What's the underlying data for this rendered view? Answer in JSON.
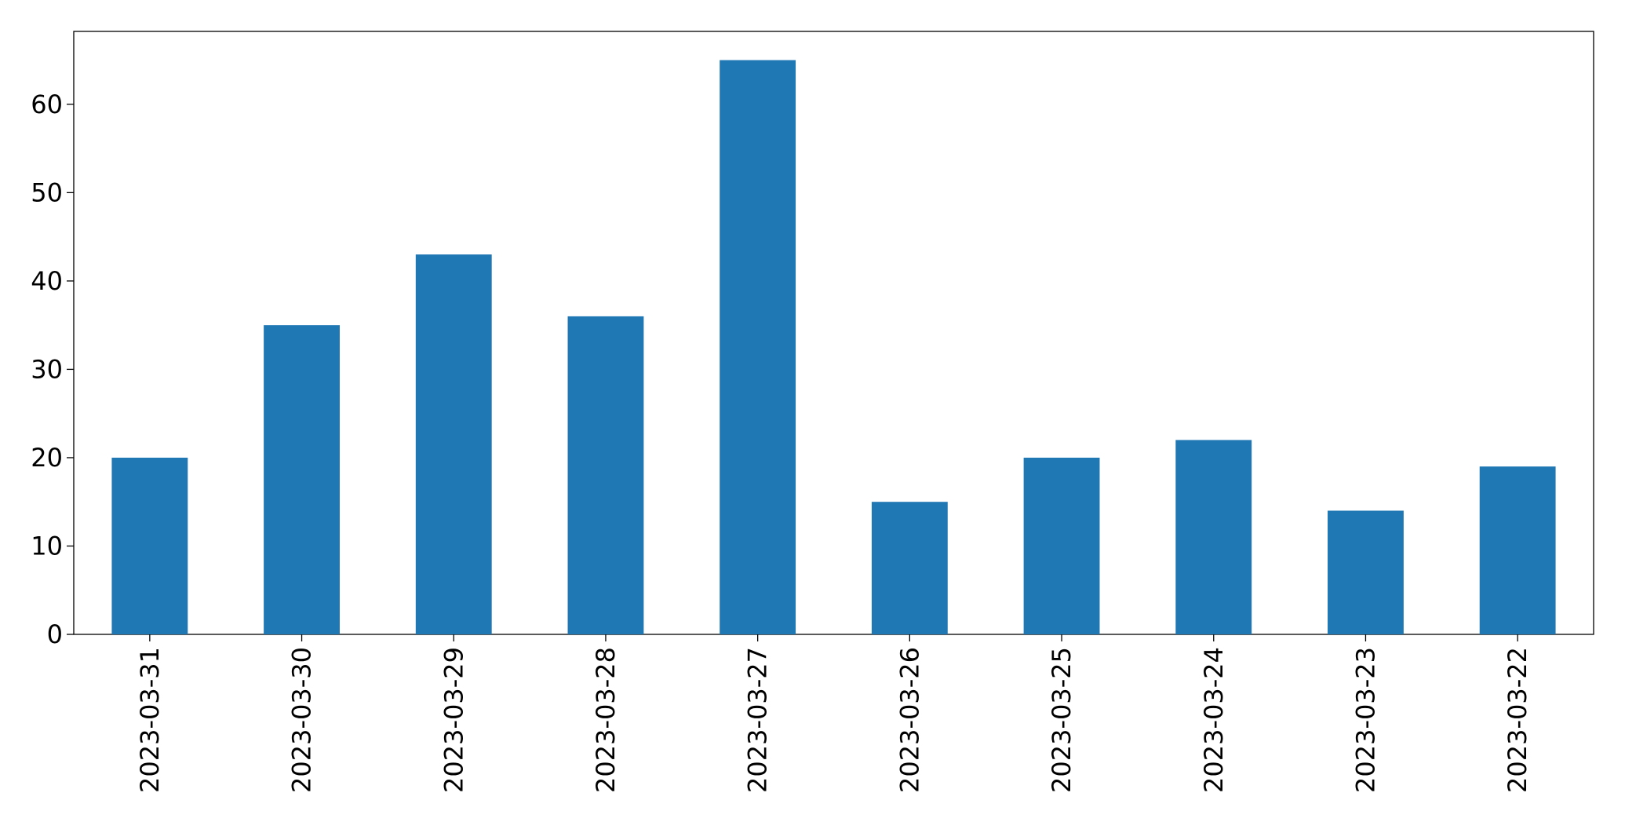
{
  "chart_data": {
    "type": "bar",
    "categories": [
      "2023-03-31",
      "2023-03-30",
      "2023-03-29",
      "2023-03-28",
      "2023-03-27",
      "2023-03-26",
      "2023-03-25",
      "2023-03-24",
      "2023-03-23",
      "2023-03-22"
    ],
    "values": [
      20,
      35,
      43,
      36,
      65,
      15,
      20,
      22,
      14,
      19
    ],
    "color": "#1f77b4",
    "ylim": [
      0,
      68.25
    ],
    "yticks": [
      0,
      10,
      20,
      30,
      40,
      50,
      60
    ],
    "grid": false
  }
}
